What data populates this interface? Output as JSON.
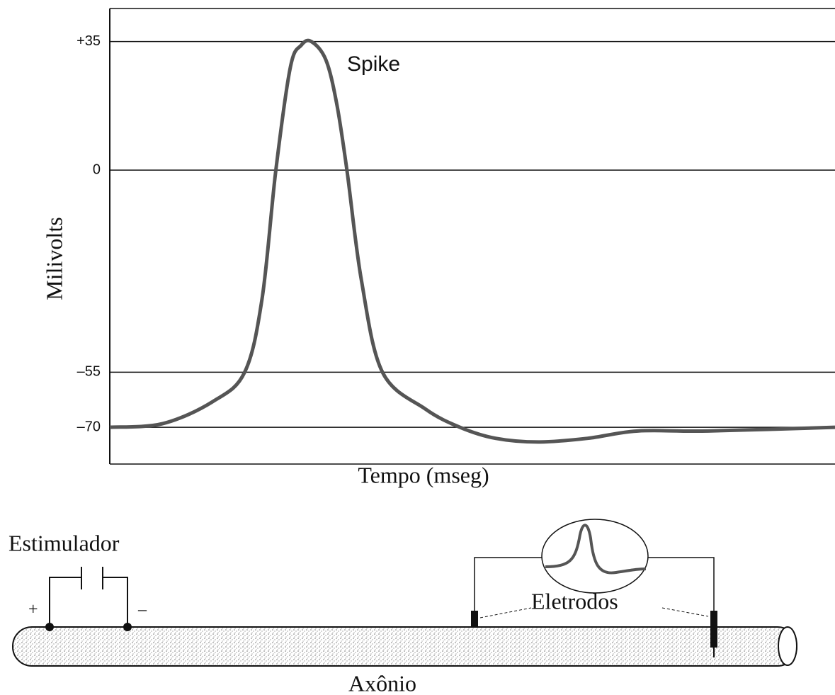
{
  "chart_data": {
    "type": "line",
    "ylabel": "Milivolts",
    "xlabel": "Tempo (mseg)",
    "annotation": "Spike",
    "xlim": [
      0,
      100
    ],
    "ylim": [
      -80,
      44
    ],
    "yticks": [
      {
        "value": 35,
        "label": "+35"
      },
      0,
      {
        "value": -55,
        "label": "–55"
      },
      {
        "value": -70,
        "label": "–70"
      }
    ],
    "grid": true,
    "series": [
      {
        "color": "#555555",
        "x": [
          0,
          7.3,
          14.2,
          18.6,
          21,
          22.9,
          24.9,
          26.4,
          27.8,
          29.8,
          31.3,
          32.7,
          34.7,
          37.6,
          43.5,
          48.3,
          53.2,
          59.1,
          65.9,
          72.8,
          82.5,
          100
        ],
        "values": [
          -70,
          -69,
          -63,
          -55,
          -35,
          0,
          28,
          34,
          35,
          30,
          18,
          0,
          -30,
          -55,
          -65,
          -70,
          -73,
          -74,
          -73,
          -71,
          -71,
          -70
        ]
      }
    ]
  },
  "diagram": {
    "stimulator": "Estimulador",
    "plus": "+",
    "minus": "–",
    "electrodes": "Eletrodos",
    "axon": "Axônio"
  }
}
